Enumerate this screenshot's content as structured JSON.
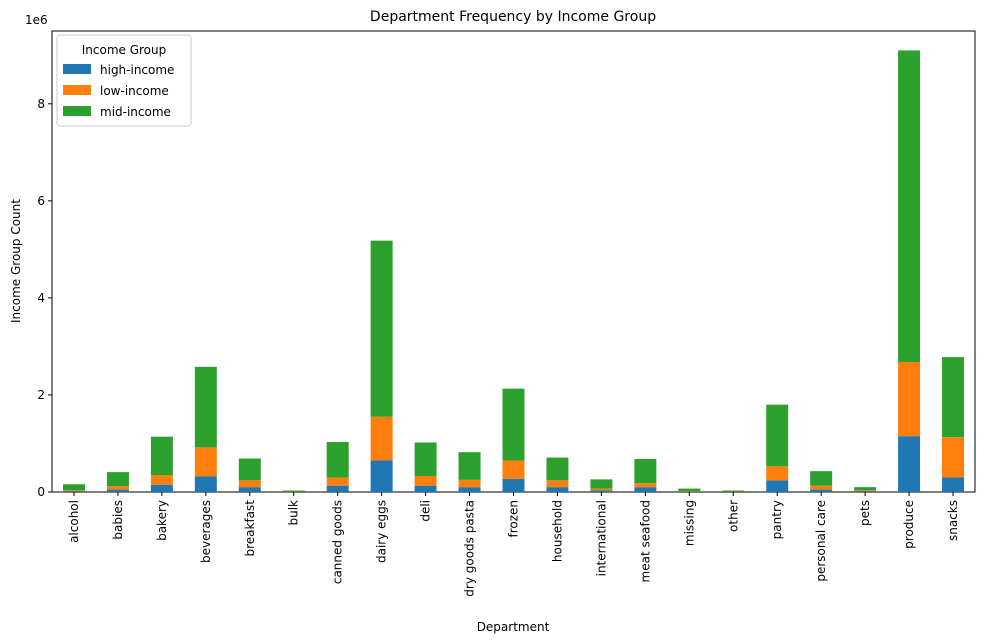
{
  "chart_data": {
    "type": "bar",
    "stacked": true,
    "title": "Department Frequency by Income Group",
    "xlabel": "Department",
    "ylabel": "Income Group Count",
    "scale_label": "1e6",
    "ylim": [
      0,
      9.5
    ],
    "yticks": [
      0,
      2,
      4,
      6,
      8
    ],
    "ytick_labels": [
      "0",
      "2",
      "4",
      "6",
      "8"
    ],
    "legend_title": "Income Group",
    "legend_position": "upper-left",
    "grid": false,
    "categories": [
      "alcohol",
      "babies",
      "bakery",
      "beverages",
      "breakfast",
      "bulk",
      "canned goods",
      "dairy eggs",
      "deli",
      "dry goods pasta",
      "frozen",
      "household",
      "international",
      "meat seafood",
      "missing",
      "other",
      "pantry",
      "personal care",
      "pets",
      "produce",
      "snacks"
    ],
    "series": [
      {
        "name": "high-income",
        "color": "#1f77b4",
        "values": [
          0.02,
          0.05,
          0.15,
          0.32,
          0.1,
          0.005,
          0.13,
          0.65,
          0.13,
          0.1,
          0.27,
          0.1,
          0.03,
          0.1,
          0.01,
          0.005,
          0.24,
          0.05,
          0.02,
          1.15,
          0.3
        ]
      },
      {
        "name": "low-income",
        "color": "#ff7f0e",
        "values": [
          0.02,
          0.07,
          0.2,
          0.6,
          0.14,
          0.005,
          0.17,
          0.9,
          0.2,
          0.15,
          0.38,
          0.14,
          0.04,
          0.08,
          0.01,
          0.005,
          0.29,
          0.08,
          0.02,
          1.53,
          0.83
        ]
      },
      {
        "name": "mid-income",
        "color": "#2ca02c",
        "values": [
          0.12,
          0.29,
          0.79,
          1.66,
          0.45,
          0.02,
          0.73,
          3.63,
          0.69,
          0.57,
          1.48,
          0.47,
          0.19,
          0.5,
          0.05,
          0.02,
          1.27,
          0.3,
          0.06,
          6.42,
          1.65
        ]
      }
    ]
  }
}
